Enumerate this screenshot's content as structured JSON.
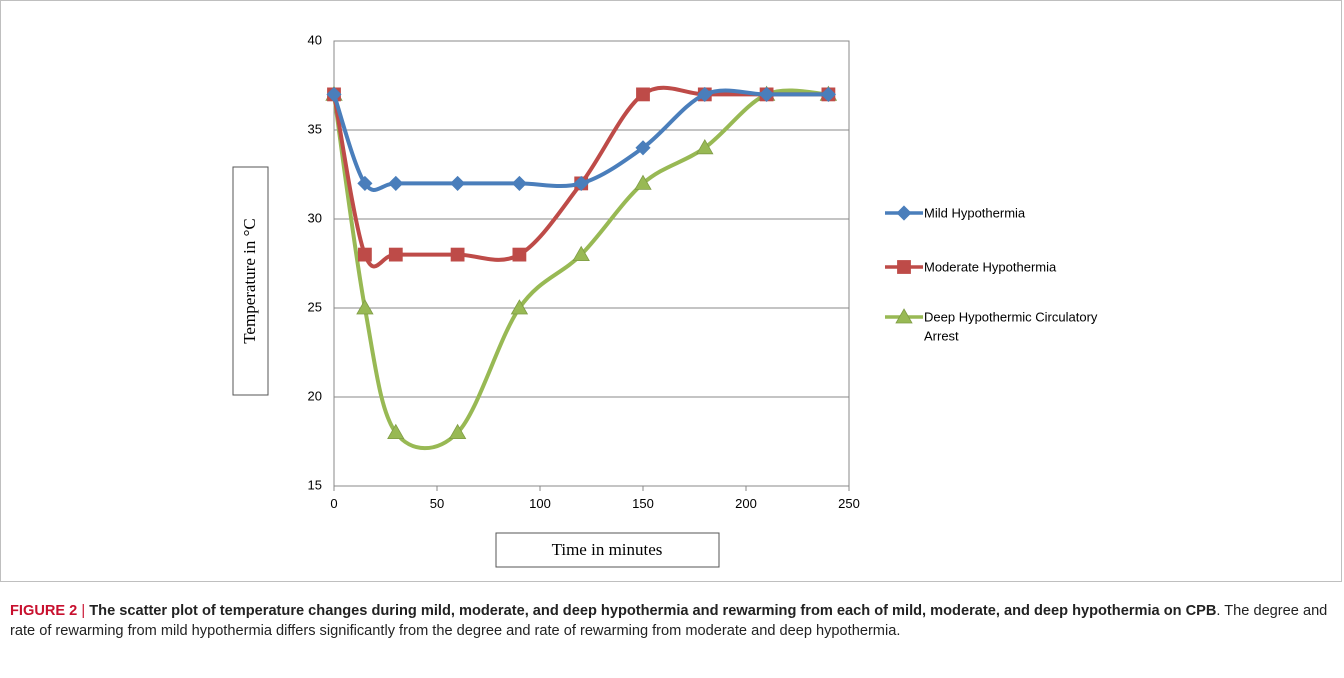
{
  "chart_data": {
    "type": "scatter",
    "smoothed": true,
    "x": [
      0,
      15,
      30,
      60,
      90,
      120,
      150,
      180,
      210,
      240
    ],
    "series": [
      {
        "name": "Mild Hypothermia",
        "color": "#4a7ebb",
        "marker": "diamond",
        "values": [
          37,
          32,
          32,
          32,
          32,
          32,
          34,
          37,
          37,
          37
        ]
      },
      {
        "name": "Moderate Hypothermia",
        "color": "#be4b48",
        "marker": "square",
        "values": [
          37,
          28,
          28,
          28,
          28,
          32,
          37,
          37,
          37,
          37
        ]
      },
      {
        "name": "Deep Hypothermic Circulatory Arrest",
        "color": "#98b954",
        "marker": "triangle",
        "values": [
          37,
          25,
          18,
          18,
          25,
          28,
          32,
          34,
          37,
          37
        ]
      }
    ],
    "xlabel": "Time in minutes",
    "ylabel": "Temperature in °C",
    "xlim": [
      0,
      250
    ],
    "ylim": [
      15,
      40
    ],
    "x_ticks": [
      "0",
      "50",
      "100",
      "150",
      "200",
      "250"
    ],
    "y_ticks": [
      "15",
      "20",
      "25",
      "30",
      "35",
      "40"
    ],
    "grid": "horizontal",
    "legend_position": "right"
  },
  "caption": {
    "label": "FIGURE 2",
    "separator": "|",
    "bold_text": "The scatter plot of temperature changes during mild, moderate, and deep hypothermia and rewarming from each of mild, moderate, and deep hypothermia on CPB",
    "body_text": ". The degree and rate of rewarming from mild hypothermia differs significantly from the degree and rate of rewarming from moderate and deep hypothermia."
  }
}
